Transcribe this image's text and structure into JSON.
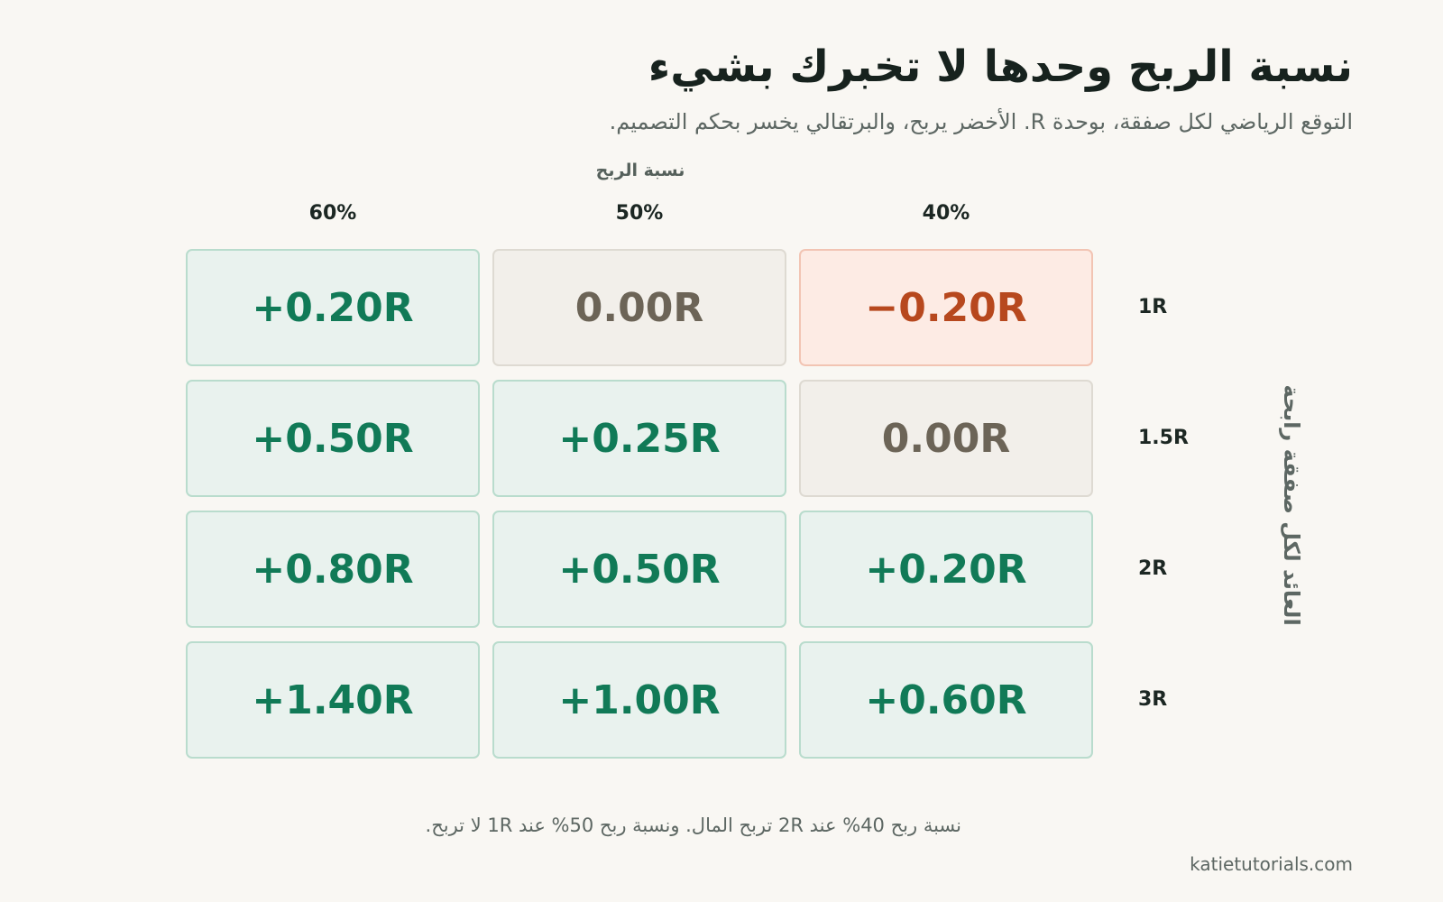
{
  "header": {
    "title": "نسبة الربح وحدها لا تخبرك بشيء",
    "subtitle": "التوقع الرياضي لكل صفقة، بوحدة R. الأخضر يربح، والبرتقالي يخسر بحكم التصميم."
  },
  "chart_data": {
    "type": "heatmap",
    "x_axis_title": "نسبة الربح",
    "y_axis_title": "العائد لكل صفقة رابحة",
    "columns": [
      "40%",
      "50%",
      "60%"
    ],
    "rows": [
      "1R",
      "1.5R",
      "2R",
      "3R"
    ],
    "values": [
      [
        -0.2,
        0.0,
        0.2
      ],
      [
        0.0,
        0.25,
        0.5
      ],
      [
        0.2,
        0.5,
        0.8
      ],
      [
        0.6,
        1.0,
        1.4
      ]
    ],
    "labels": [
      [
        "−0.20R",
        "0.00R",
        "+0.20R"
      ],
      [
        "0.00R",
        "+0.25R",
        "+0.50R"
      ],
      [
        "+0.20R",
        "+0.50R",
        "+0.80R"
      ],
      [
        "+0.60R",
        "+1.00R",
        "+1.40R"
      ]
    ],
    "colors": {
      "positive_text": "#117a57",
      "positive_fill": "#e9f2ee",
      "neutral_text": "#6c6457",
      "neutral_fill": "#f2efea",
      "negative_text": "#b7481e",
      "negative_fill": "#fdebe4"
    }
  },
  "footer": {
    "note": "نسبة ربح 40% عند 2R تربح المال. ونسبة ربح 50% عند 1R لا تربح.",
    "source": "katietutorials.com"
  }
}
